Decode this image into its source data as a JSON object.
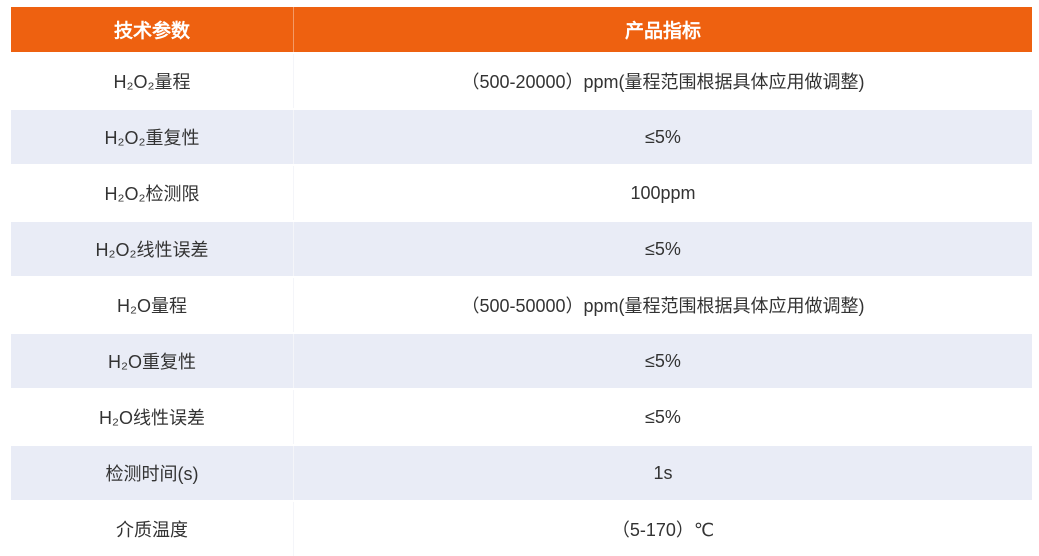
{
  "header": {
    "col1": "技术参数",
    "col2": "产品指标"
  },
  "colors": {
    "header_bg": "#ee6110",
    "alt_row_bg": "#e9ecf6"
  },
  "rows": [
    {
      "param": "H₂O₂量程",
      "value": "（500-20000）ppm(量程范围根据具体应用做调整)"
    },
    {
      "param": "H₂O₂重复性",
      "value": "≤5%"
    },
    {
      "param": "H₂O₂检测限",
      "value": "100ppm"
    },
    {
      "param": "H₂O₂线性误差",
      "value": "≤5%"
    },
    {
      "param": "H₂O量程",
      "value": "（500-50000）ppm(量程范围根据具体应用做调整)"
    },
    {
      "param": "H₂O重复性",
      "value": "≤5%"
    },
    {
      "param": "H₂O线性误差",
      "value": "≤5%"
    },
    {
      "param": "检测时间(s)",
      "value": "1s"
    },
    {
      "param": "介质温度",
      "value": "（5-170）℃"
    }
  ]
}
